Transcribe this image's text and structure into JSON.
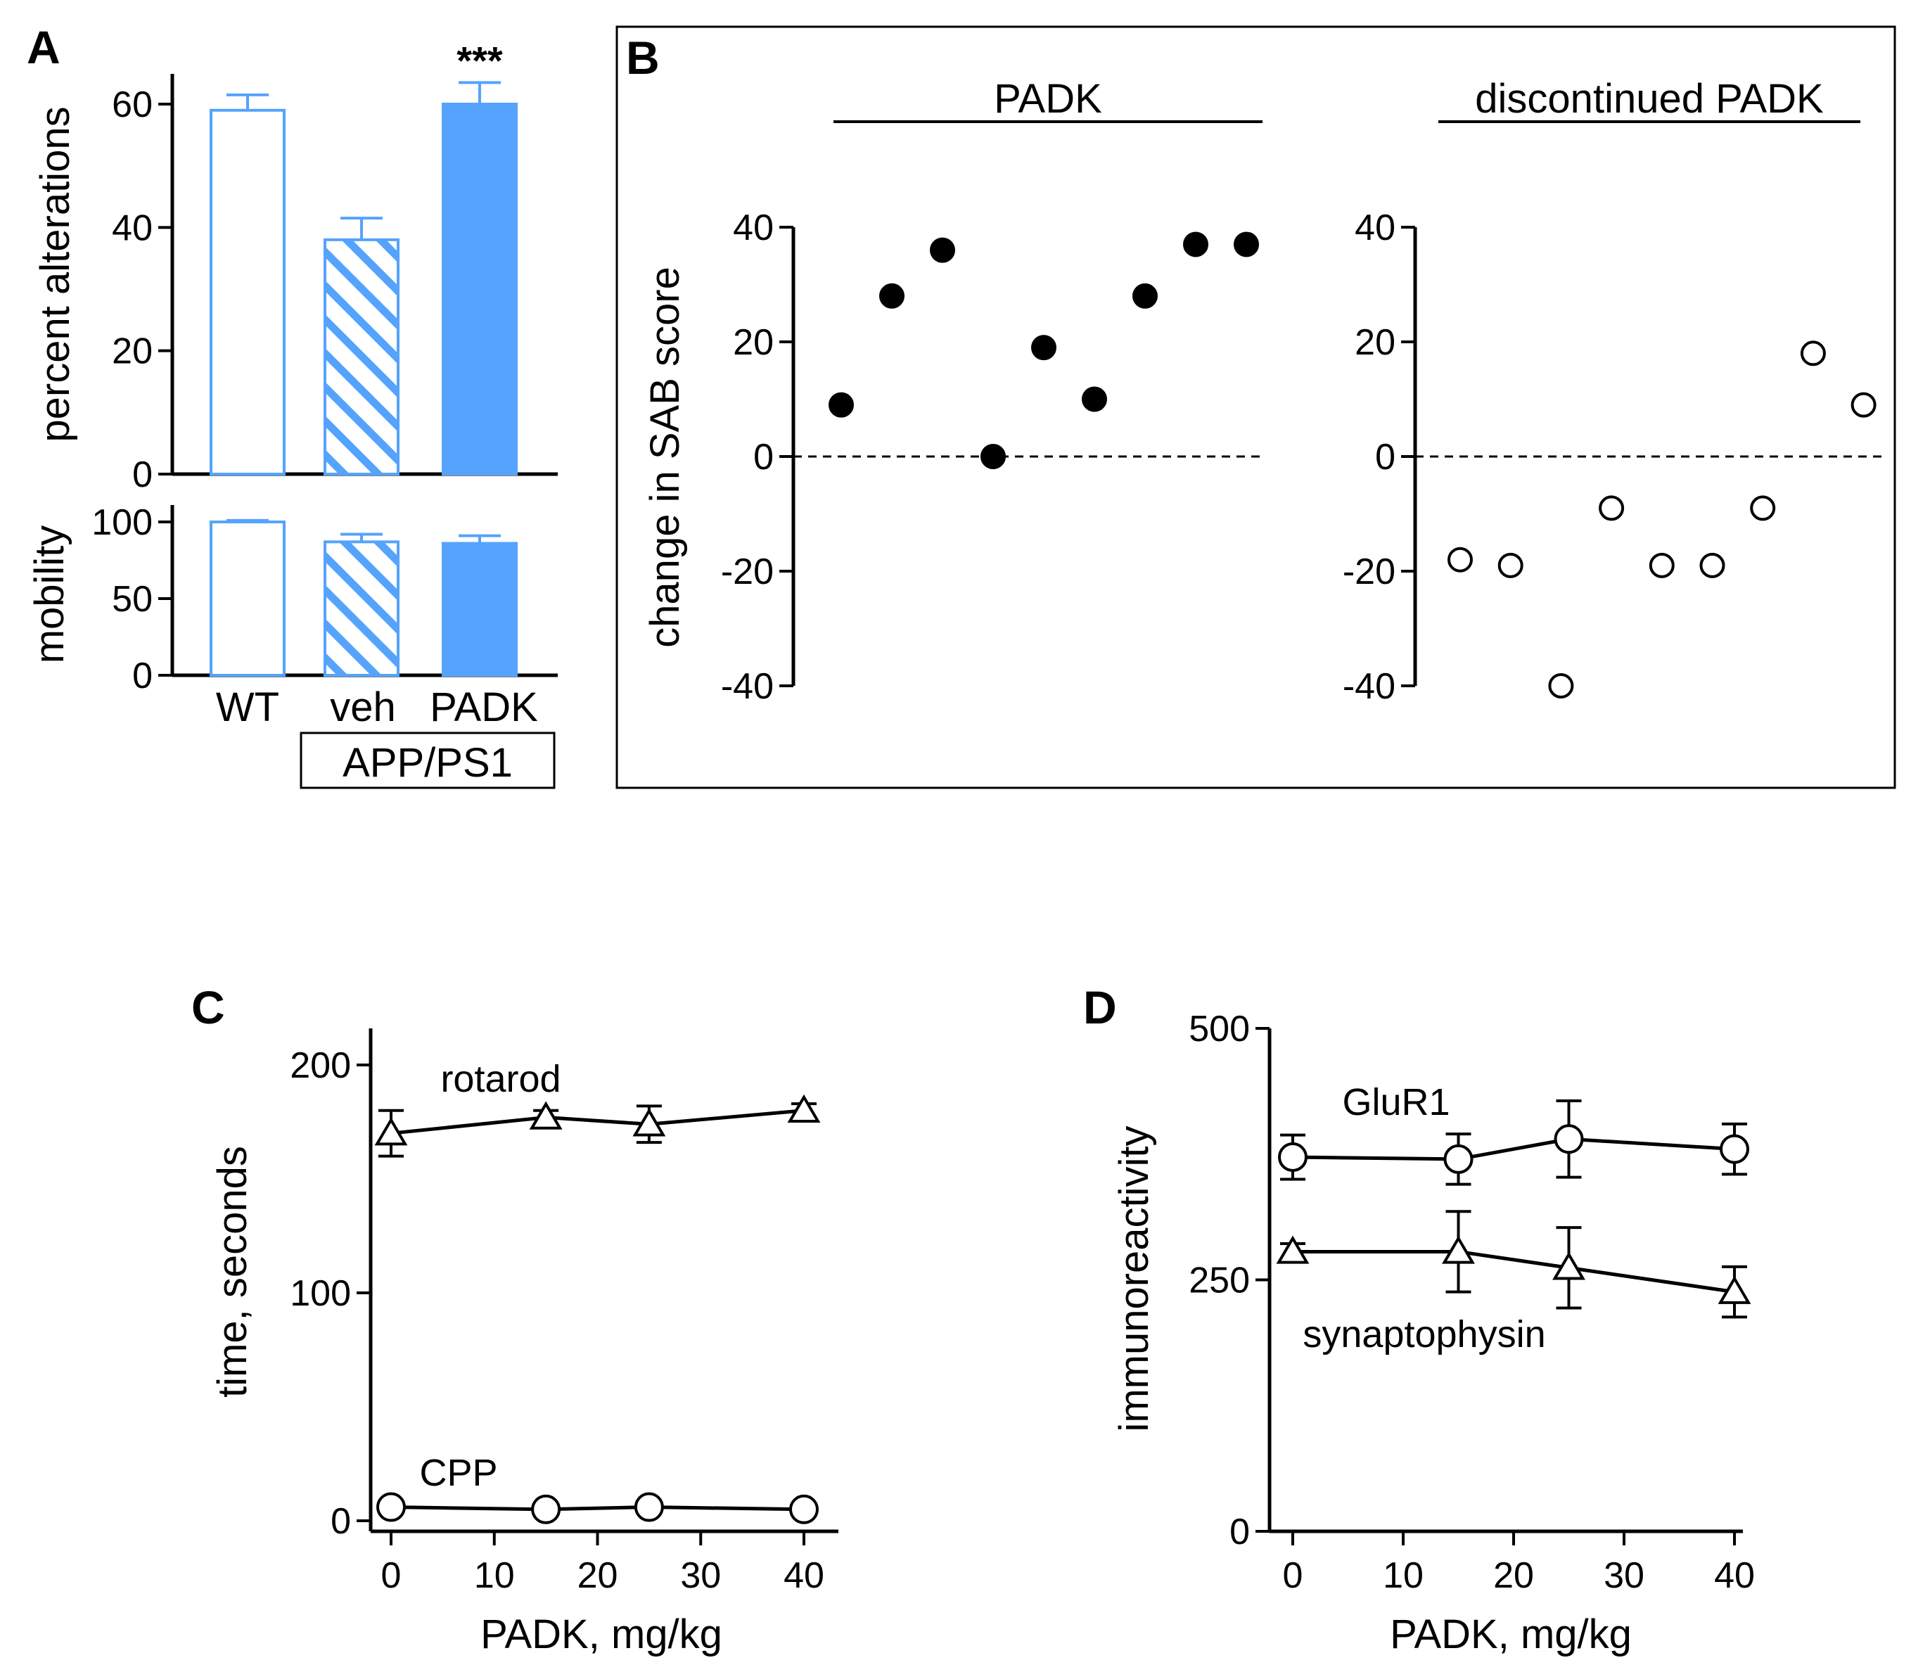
{
  "chart_data": [
    {
      "id": "A",
      "panel_label": "A",
      "type": "bar",
      "subplots": [
        {
          "ylabel": "percent alterations",
          "ylim": [
            0,
            65
          ],
          "yticks": [
            0,
            20,
            40,
            60
          ],
          "categories": [
            "WT",
            "veh",
            "PADK"
          ],
          "values": [
            59,
            38,
            60
          ],
          "errors": [
            2.5,
            3.5,
            3.5
          ],
          "annotation": "***",
          "annotation_on": "PADK"
        },
        {
          "ylabel": "mobility",
          "ylim": [
            0,
            110
          ],
          "yticks": [
            0,
            50,
            100
          ],
          "categories": [
            "WT",
            "veh",
            "PADK"
          ],
          "values": [
            100,
            87,
            86
          ],
          "errors": [
            1,
            5,
            5
          ]
        }
      ],
      "category_labels": [
        "WT",
        "veh",
        "PADK"
      ],
      "group_label": "APP/PS1",
      "colors": {
        "accent": "#55a3fd",
        "outline": "#55a3fd"
      }
    },
    {
      "id": "B",
      "panel_label": "B",
      "type": "scatter",
      "ylabel": "change in SAB score",
      "ylim": [
        -40,
        40
      ],
      "yticks": [
        -40,
        -20,
        0,
        20,
        40
      ],
      "series": [
        {
          "name": "PADK",
          "marker": "filled-circle",
          "values": [
            9,
            28,
            36,
            0,
            19,
            10,
            28,
            37,
            37
          ]
        },
        {
          "name": "discontinued PADK",
          "marker": "open-circle",
          "values": [
            -18,
            -19,
            -40,
            -9,
            -19,
            -19,
            -9,
            18,
            9
          ]
        }
      ]
    },
    {
      "id": "C",
      "panel_label": "C",
      "type": "line",
      "xlabel": "PADK, mg/kg",
      "ylabel": "time, seconds",
      "xlim": [
        -2,
        44
      ],
      "ylim": [
        -5,
        215
      ],
      "xticks": [
        0,
        10,
        20,
        30,
        40
      ],
      "yticks": [
        0,
        100,
        200
      ],
      "x": [
        0,
        15,
        25,
        40
      ],
      "series": [
        {
          "name": "rotarod",
          "marker": "triangle",
          "values": [
            170,
            177,
            174,
            180
          ],
          "errors": [
            10,
            3,
            8,
            3
          ]
        },
        {
          "name": "CPP",
          "marker": "circle",
          "values": [
            6,
            5,
            6,
            5
          ],
          "errors": [
            2,
            2,
            2,
            2
          ]
        }
      ]
    },
    {
      "id": "D",
      "panel_label": "D",
      "type": "line",
      "xlabel": "PADK, mg/kg",
      "ylabel": "immunoreactivity",
      "xlim": [
        -2,
        44
      ],
      "ylim": [
        0,
        500
      ],
      "xticks": [
        0,
        10,
        20,
        30,
        40
      ],
      "yticks": [
        0,
        250,
        500
      ],
      "x": [
        0,
        15,
        25,
        40
      ],
      "series": [
        {
          "name": "GluR1",
          "marker": "circle",
          "values": [
            372,
            370,
            390,
            380
          ],
          "errors": [
            22,
            25,
            38,
            25
          ]
        },
        {
          "name": "synaptophysin",
          "marker": "triangle",
          "values": [
            278,
            278,
            262,
            238
          ],
          "errors": [
            8,
            40,
            40,
            25
          ]
        }
      ]
    }
  ]
}
